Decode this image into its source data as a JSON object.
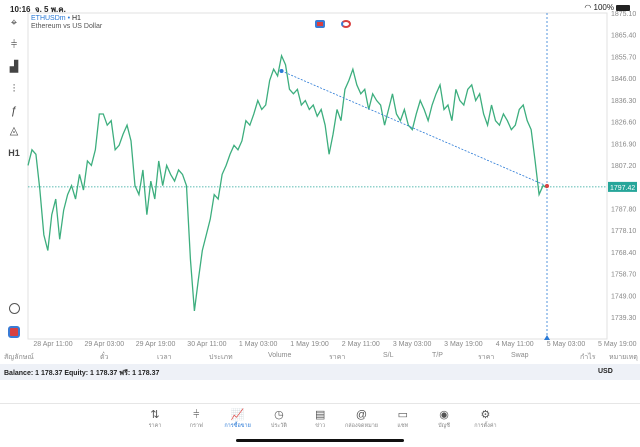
{
  "status": {
    "time": "10:16",
    "date": "จ. 5 พ.ค.",
    "battery": "100%"
  },
  "symbol": {
    "name": "ETHUSDm",
    "timeframe": "H1",
    "description": "Ethereum vs US Dollar"
  },
  "toolbar": [
    {
      "icon": "crosshair-icon",
      "g": "⌖"
    },
    {
      "icon": "candlestick-icon",
      "g": "⫩"
    },
    {
      "icon": "bar-chart-icon",
      "g": "▟"
    },
    {
      "icon": "indicators-icon",
      "g": "⫶"
    },
    {
      "icon": "function-icon",
      "g": "ƒ"
    },
    {
      "icon": "shapes-icon",
      "g": "◬"
    },
    {
      "icon": "timeframe-label",
      "g": "H1"
    }
  ],
  "chart_data": {
    "type": "line",
    "symbol": "ETHUSDm",
    "ylim": [
      1735,
      1878
    ],
    "y_ticks": [
      "1875.10",
      "1865.40",
      "1855.70",
      "1846.00",
      "1836.30",
      "1826.60",
      "1816.90",
      "1807.20",
      "1787.80",
      "1778.10",
      "1768.40",
      "1758.70",
      "1749.00",
      "1739.30"
    ],
    "y_tick_values": [
      1875.1,
      1865.4,
      1855.7,
      1846.0,
      1836.3,
      1826.6,
      1816.9,
      1807.2,
      1787.8,
      1778.1,
      1768.4,
      1758.7,
      1749.0,
      1739.3
    ],
    "x_ticks": [
      "28 Apr 11:00",
      "29 Apr 03:00",
      "29 Apr 19:00",
      "30 Apr 11:00",
      "1 May 03:00",
      "1 May 19:00",
      "2 May 11:00",
      "3 May 03:00",
      "3 May 19:00",
      "4 May 11:00",
      "5 May 03:00",
      "5 May 19:00"
    ],
    "current_price": "1797.42",
    "current_price_value": 1797.42,
    "values": [
      1807,
      1814,
      1812,
      1796,
      1776,
      1769,
      1785,
      1792,
      1774,
      1787,
      1794,
      1798,
      1792,
      1803,
      1796,
      1809,
      1807,
      1814,
      1830,
      1830,
      1825,
      1827,
      1814,
      1816,
      1821,
      1825,
      1818,
      1798,
      1794,
      1805,
      1785,
      1800,
      1792,
      1809,
      1798,
      1807,
      1803,
      1800,
      1805,
      1803,
      1798,
      1765,
      1742,
      1756,
      1769,
      1776,
      1783,
      1794,
      1792,
      1803,
      1807,
      1812,
      1816,
      1814,
      1818,
      1827,
      1825,
      1830,
      1836,
      1832,
      1834,
      1845,
      1850,
      1847,
      1856,
      1852,
      1841,
      1839,
      1841,
      1834,
      1836,
      1832,
      1834,
      1829,
      1832,
      1825,
      1812,
      1821,
      1832,
      1827,
      1841,
      1845,
      1850,
      1843,
      1839,
      1841,
      1832,
      1839,
      1836,
      1834,
      1825,
      1832,
      1839,
      1830,
      1827,
      1832,
      1825,
      1823,
      1830,
      1836,
      1832,
      1827,
      1834,
      1839,
      1843,
      1832,
      1834,
      1827,
      1841,
      1836,
      1834,
      1841,
      1843,
      1836,
      1839,
      1830,
      1825,
      1834,
      1827,
      1825,
      1830,
      1827,
      1823,
      1825,
      1832,
      1834,
      1827,
      1823,
      1809,
      1794,
      1798,
      1797
    ],
    "trendline": {
      "start_index": 64,
      "start_price": 1849.2,
      "end_price": 1797.8
    }
  },
  "colors": {
    "line": "#3dae7e",
    "accent": "#2a7ad6",
    "price_tag": "#26a69a"
  },
  "columns": [
    "สัญลักษณ์",
    "ตั๋ว",
    "เวลา",
    "ประเภท",
    "Volume",
    "ราคา",
    "S/L",
    "T/P",
    "ราคา",
    "Swap",
    "กำไร",
    "หมายเหตุ"
  ],
  "balance": {
    "text": "Balance: 1 178.37 Equity: 1 178.37 ฟรี: 1 178.37",
    "currency": "USD"
  },
  "tabs": [
    {
      "label": "ราคา",
      "g": "⇅",
      "icon": "quotes-icon"
    },
    {
      "label": "กราฟ",
      "g": "⫩",
      "icon": "chart-icon"
    },
    {
      "label": "การซื้อขาย",
      "g": "📈",
      "icon": "trade-icon",
      "active": true
    },
    {
      "label": "ประวัติ",
      "g": "◷",
      "icon": "history-icon"
    },
    {
      "label": "ข่าว",
      "g": "▤",
      "icon": "news-icon"
    },
    {
      "label": "กล่องจดหมาย",
      "g": "@",
      "icon": "mailbox-icon"
    },
    {
      "label": "แชท",
      "g": "▭",
      "icon": "chat-icon"
    },
    {
      "label": "บัญชี",
      "g": "◉",
      "icon": "account-icon"
    },
    {
      "label": "การตั้งค่า",
      "g": "⚙",
      "icon": "settings-icon"
    }
  ]
}
